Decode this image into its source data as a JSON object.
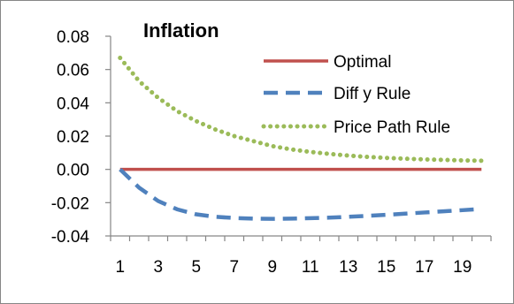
{
  "chart_data": {
    "type": "line",
    "title": "Inflation",
    "xlabel": "",
    "ylabel": "",
    "x": [
      1,
      2,
      3,
      4,
      5,
      6,
      7,
      8,
      9,
      10,
      11,
      12,
      13,
      14,
      15,
      16,
      17,
      18,
      19,
      20
    ],
    "x_tick_labels": [
      "1",
      "3",
      "5",
      "7",
      "9",
      "11",
      "13",
      "15",
      "17",
      "19"
    ],
    "y_tick_labels": [
      "0.08",
      "0.06",
      "0.04",
      "0.02",
      "0.00",
      "-0.02",
      "-0.04"
    ],
    "ylim": [
      -0.04,
      0.08
    ],
    "grid": false,
    "legend_position": "top-right",
    "series": [
      {
        "name": "Optimal",
        "color": "#c0504d",
        "style": "solid",
        "values": [
          0.0,
          0.0,
          0.0,
          0.0,
          0.0,
          0.0,
          0.0,
          0.0,
          0.0,
          0.0,
          0.0,
          0.0,
          0.0,
          0.0,
          0.0,
          0.0,
          0.0,
          0.0,
          0.0,
          0.0
        ]
      },
      {
        "name": "Diff y Rule",
        "color": "#4f81bd",
        "style": "dashed",
        "values": [
          0.0,
          -0.011,
          -0.019,
          -0.024,
          -0.027,
          -0.0285,
          -0.0292,
          -0.0296,
          -0.0297,
          -0.0296,
          -0.0293,
          -0.029,
          -0.0285,
          -0.0279,
          -0.0273,
          -0.0266,
          -0.0259,
          -0.0252,
          -0.0245,
          -0.0238
        ]
      },
      {
        "name": "Price Path Rule",
        "color": "#9bbb59",
        "style": "dotted",
        "values": [
          0.067,
          0.053,
          0.043,
          0.035,
          0.029,
          0.024,
          0.02,
          0.017,
          0.014,
          0.012,
          0.0105,
          0.0093,
          0.0083,
          0.0075,
          0.0069,
          0.0064,
          0.006,
          0.0057,
          0.0054,
          0.0052
        ]
      }
    ]
  }
}
